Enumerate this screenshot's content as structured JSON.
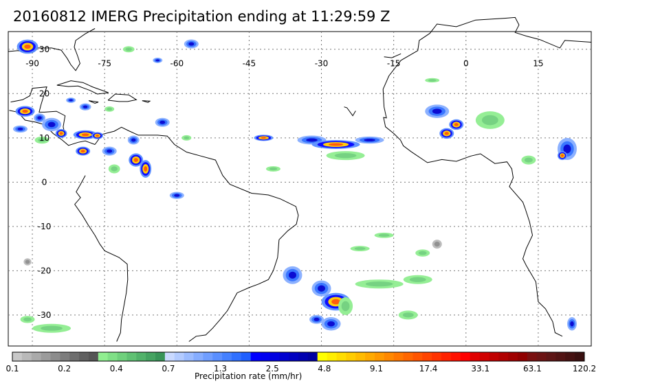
{
  "title": "20160812 IMERG Precipitation ending at 11:29:59 Z",
  "map": {
    "lon_labels": [
      "-90",
      "-75",
      "-60",
      "-45",
      "-30",
      "-15",
      "0",
      "15"
    ],
    "lat_labels": [
      "30",
      "20",
      "10",
      "0",
      "-10",
      "-20",
      "-30"
    ],
    "lon_range": [
      -95,
      26
    ],
    "lat_range": [
      -37,
      34
    ],
    "grid_lons": [
      -90,
      -75,
      -60,
      -45,
      -30,
      -15,
      0,
      15
    ],
    "grid_lats": [
      30,
      20,
      10,
      0,
      -10,
      -20,
      -30
    ]
  },
  "colorbar": {
    "label": "Precipitation rate (mm/hr)",
    "tick_labels": [
      "0.1",
      "0.2",
      "0.4",
      "0.7",
      "1.3",
      "2.5",
      "4.8",
      "9.1",
      "17.4",
      "33.1",
      "63.1",
      "120.2"
    ],
    "colors": [
      "#c8c8c8",
      "#b9b9b9",
      "#aaaaaa",
      "#9b9b9b",
      "#8c8c8c",
      "#7d7d7d",
      "#6e6e6e",
      "#606060",
      "#555555",
      "#90ee90",
      "#7fdf86",
      "#6fd07c",
      "#60c173",
      "#52b26a",
      "#45a361",
      "#389458",
      "#c9d9ff",
      "#b3cbff",
      "#9cbcff",
      "#86adff",
      "#709eff",
      "#5a8fff",
      "#4480ff",
      "#3070ff",
      "#1f5fff",
      "#0000ff",
      "#0000f0",
      "#0000e0",
      "#0000d0",
      "#0000c0",
      "#0000b0",
      "#0000a0",
      "#ffff00",
      "#ffee00",
      "#ffdd00",
      "#ffcc00",
      "#ffbb00",
      "#ffaa00",
      "#ff9900",
      "#ff8800",
      "#ff7700",
      "#ff6600",
      "#ff5500",
      "#ff4400",
      "#ff3300",
      "#ff2200",
      "#ff1100",
      "#ff0000",
      "#e00000",
      "#d00000",
      "#c00000",
      "#b00000",
      "#a00000",
      "#900000",
      "#7a1010",
      "#6c1414",
      "#5e1616",
      "#521414",
      "#461212",
      "#3a1010"
    ]
  }
}
